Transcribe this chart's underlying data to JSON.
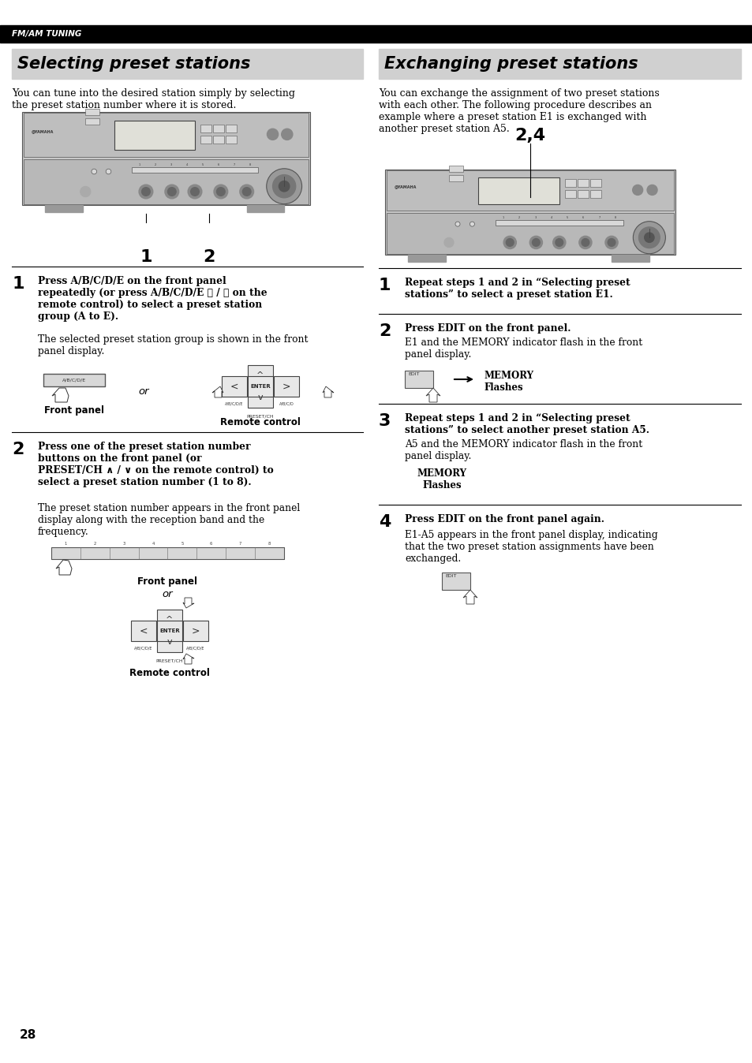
{
  "page_bg": "#ffffff",
  "header_bg": "#000000",
  "header_text": "FM/AM TUNING",
  "header_text_color": "#ffffff",
  "section_bg": "#d0d0d0",
  "title_left": "Selecting preset stations",
  "title_right": "Exchanging preset stations",
  "title_color": "#000000",
  "page_number": "28",
  "left_intro": "You can tune into the desired station simply by selecting\nthe preset station number where it is stored.",
  "right_intro": "You can exchange the assignment of two preset stations\nwith each other. The following procedure describes an\nexample where a preset station E1 is exchanged with\nanother preset station A5.",
  "step1_left_bold": "Press A/B/C/D/E on the front panel\nrepeatedly (or press A/B/C/D/E 〈 / 〉 on the\nremote control) to select a preset station\ngroup (A to E).",
  "step1_left_body": "The selected preset station group is shown in the front\npanel display.",
  "step2_left_bold": "Press one of the preset station number\nbuttons on the front panel (or\nPRESET/CH ∧ / ∨ on the remote control) to\nselect a preset station number (1 to 8).",
  "step2_left_body": "The preset station number appears in the front panel\ndisplay along with the reception band and the\nfrequency.",
  "step1_right_bold": "Repeat steps 1 and 2 in “Selecting preset\nstations” to select a preset station E1.",
  "step2_right_bold": "Press EDIT on the front panel.",
  "step2_right_body": "E1 and the MEMORY indicator flash in the front\npanel display.",
  "step3_right_bold": "Repeat steps 1 and 2 in “Selecting preset\nstations” to select another preset station A5.",
  "step3_right_body": "A5 and the MEMORY indicator flash in the front\npanel display.",
  "step4_right_bold": "Press EDIT on the front panel again.",
  "step4_right_body": "E1-A5 appears in the front panel display, indicating\nthat the two preset station assignments have been\nexchanged.",
  "memory_flashes_label": "MEMORY\nFlashes",
  "front_panel_label": "Front panel",
  "remote_control_label": "Remote control",
  "label_2_4": "2,4",
  "or_label": "or"
}
